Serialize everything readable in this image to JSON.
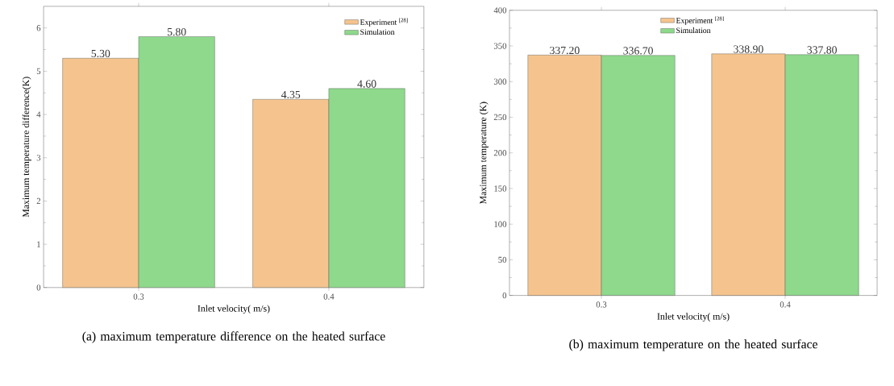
{
  "chart_data": [
    {
      "type": "bar",
      "categories": [
        "0.3",
        "0.4"
      ],
      "xlabel": "Inlet velocity( m/s)",
      "ylabel": "Maximum temperature difference(K)",
      "ylim": [
        0,
        6.5
      ],
      "yticks": [
        0,
        1,
        2,
        3,
        4,
        5,
        6
      ],
      "legend": "top right",
      "annotations": [
        "(a) maximum temperature difference on the heated surface"
      ],
      "series": [
        {
          "name": "Experiment $^{[28]}$",
          "color": "#f5c48e",
          "values": [
            5.3,
            4.35
          ],
          "value_labels": [
            "5.30",
            "4.35"
          ]
        },
        {
          "name": "Simulation",
          "color": "#8ed98c",
          "values": [
            5.8,
            4.6
          ],
          "value_labels": [
            "5.80",
            "4.60"
          ]
        }
      ]
    },
    {
      "type": "bar",
      "categories": [
        "0.3",
        "0.4"
      ],
      "xlabel": "Inlet velocity( m/s)",
      "ylabel": "Maximum temperature (K)",
      "ylim": [
        0,
        400
      ],
      "yticks": [
        0,
        50,
        100,
        150,
        200,
        250,
        300,
        350,
        400
      ],
      "legend": "top",
      "annotations": [
        "(b) maximum temperature on the heated surface"
      ],
      "series": [
        {
          "name": "Experiment $^{[28]}$",
          "color": "#f5c48e",
          "values": [
            337.2,
            338.9
          ],
          "value_labels": [
            "337.20",
            "338.90"
          ]
        },
        {
          "name": "Simulation",
          "color": "#8ed98c",
          "values": [
            336.7,
            337.8
          ],
          "value_labels": [
            "336.70",
            "337.80"
          ]
        }
      ]
    }
  ]
}
